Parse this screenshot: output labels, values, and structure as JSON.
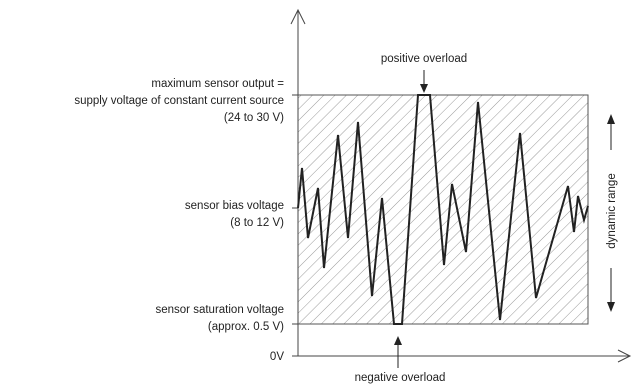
{
  "labels": {
    "max_output": [
      "maximum sensor output =",
      "supply voltage of constant current source",
      "(24 to 30 V)"
    ],
    "bias": [
      "sensor bias voltage",
      "(8 to 12 V)"
    ],
    "saturation": [
      "sensor saturation voltage",
      "(approx. 0.5 V)"
    ],
    "zero": "0V",
    "positive_overload": "positive overload",
    "negative_overload": "negative overload",
    "dynamic_range": "dynamic range"
  },
  "colors": {
    "line": "#222222",
    "hatch": "#9a9a9a",
    "text": "#222222"
  }
}
